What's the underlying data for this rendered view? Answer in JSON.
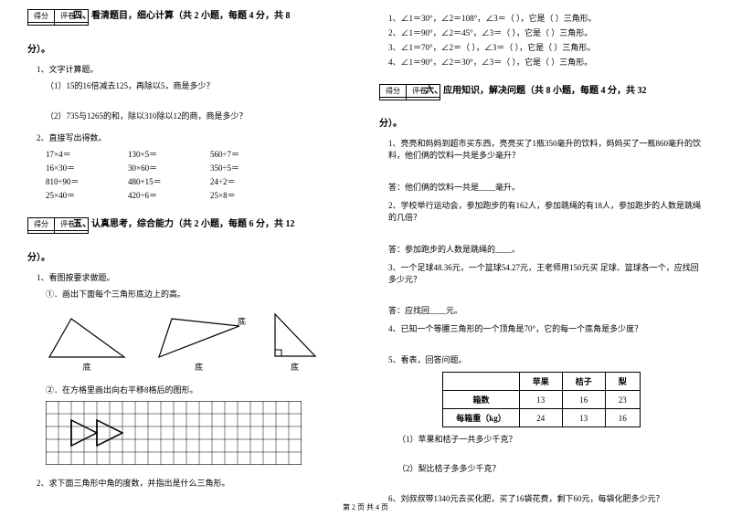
{
  "score": {
    "label1": "得分",
    "label2": "评卷人"
  },
  "sec4": {
    "title": "四、看清题目，细心计算（共 2 小题，每题 4 分，共 8",
    "pts": "分）。",
    "q1": "1、文字计算题。",
    "q1a": "（1）15的16倍减去125，再除以5，商是多少？",
    "q1b": "（2）735与1265的和，除以310除以12的商，商是多少？",
    "q2": "2、直接写出得数。",
    "calc": [
      [
        "17×4＝",
        "130×5＝",
        "560÷7＝"
      ],
      [
        "16×30＝",
        "30×60＝",
        "350÷5＝"
      ],
      [
        "810÷90＝",
        "480+15＝",
        "24÷2＝"
      ],
      [
        "25×40＝",
        "420÷6＝",
        "25×8＝"
      ]
    ]
  },
  "sec5": {
    "title": "五、认真思考，综合能力（共 2 小题，每题 6 分，共 12",
    "pts": "分）。",
    "q1": "1、看图按要求做题。",
    "q1a": "①．画出下面每个三角形底边上的高。",
    "di": "底",
    "q1b": "②．在方格里画出向右平移8格后的图形。",
    "q2": "2、求下面三角形中角的度数，并指出是什么三角形。"
  },
  "angles": [
    {
      "a": "1、∠1＝30°，",
      "b": "∠2＝108°，∠3＝（",
      "c": "），它是（",
      "d": "）三角形。"
    },
    {
      "a": "2、∠1＝90°，",
      "b": "∠2＝45°，∠3＝（",
      "c": "），它是（",
      "d": "）三角形。"
    },
    {
      "a": "3、∠1＝70°，",
      "b": "∠2＝（      ），∠3＝（",
      "c": "），它是（",
      "d": "）三角形。"
    },
    {
      "a": "4、∠1＝90°，",
      "b": "∠2＝30°，∠3＝（",
      "c": "），它是（",
      "d": "）三角形。"
    }
  ],
  "sec6": {
    "title": "六、应用知识，解决问题（共 8 小题，每题 4 分，共 32",
    "pts": "分）。",
    "q1": "1、亮亮和妈妈到超市买东西，亮亮买了1瓶350毫升的饮料，妈妈买了一瓶860毫升的饮料，他们俩的饮料一共是多少毫升？",
    "a1": "答：他们俩的饮料一共是____毫升。",
    "q2": "2、学校举行运动会，参加跑步的有162人，参加跳绳的有18人，参加跑步的人数是跳绳的几倍？",
    "a2": "答：参加跑步的人数是跳绳的____。",
    "q3": "3、一个足球48.36元，一个篮球54.27元，王老师用150元买      足球、篮球各一个，应找回多少元？",
    "a3": "答：应找回____元。",
    "q4": "4、已知一个等腰三角形的一个顶角是70°，它的每一个底角是多少度？",
    "q5": "5、看表，回答问题。",
    "table": {
      "headers": [
        "",
        "苹果",
        "桔子",
        "梨"
      ],
      "rows": [
        [
          "箱数",
          "13",
          "16",
          "23"
        ],
        [
          "每箱重（kg）",
          "24",
          "13",
          "16"
        ]
      ]
    },
    "q5a": "（1）苹果和桔子一共多少千克？",
    "q5b": "（2）梨比桔子多多少千克？",
    "q6": "6、刘叔叔带1340元去买化肥，买了16袋花费，剩下60元，每袋化肥多少元？"
  },
  "footer": "第 2 页  共 4 页"
}
